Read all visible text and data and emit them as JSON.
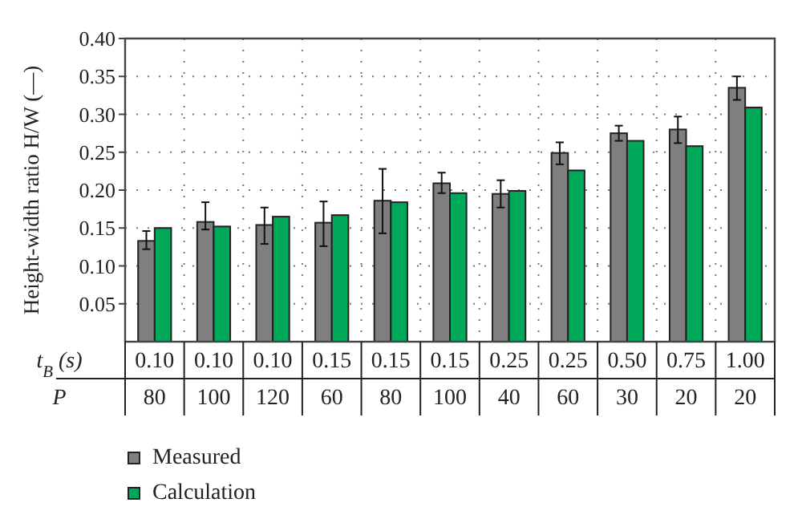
{
  "chart_data": {
    "type": "bar",
    "ylabel": "Height-width ratio H/W (—)",
    "xlabel": "t$_{B}$ (s)\nP",
    "categories": [
      "0.10\n80",
      "0.10\n100",
      "0.10\n120",
      "0.15\n60",
      "0.15\n80",
      "0.15\n100",
      "0.25\n40",
      "0.25\n60",
      "0.50\n30",
      "0.75\n20",
      "1.00\n20"
    ],
    "series": [
      {
        "name": "Measured",
        "color": "#7f7f7f",
        "values": [
          0.133,
          0.158,
          0.154,
          0.157,
          0.186,
          0.209,
          0.195,
          0.249,
          0.275,
          0.28,
          0.335
        ],
        "errors": [
          [
            0.122,
            0.146
          ],
          [
            0.148,
            0.184
          ],
          [
            0.129,
            0.177
          ],
          [
            0.126,
            0.185
          ],
          [
            0.143,
            0.228
          ],
          [
            0.196,
            0.223
          ],
          [
            0.177,
            0.213
          ],
          [
            0.234,
            0.263
          ],
          [
            0.265,
            0.285
          ],
          [
            0.262,
            0.297
          ],
          [
            0.319,
            0.35
          ]
        ]
      },
      {
        "name": "Calculation",
        "color": "#00a859",
        "values": [
          0.15,
          0.152,
          0.165,
          0.167,
          0.184,
          0.196,
          0.199,
          0.226,
          0.265,
          0.258,
          0.309
        ]
      }
    ],
    "ylim": [
      0,
      0.4
    ],
    "yticks": [
      {
        "value": 0.05,
        "label": "0.05"
      },
      {
        "value": 0.1,
        "label": "0.10"
      },
      {
        "value": 0.15,
        "label": "0.15"
      },
      {
        "value": 0.2,
        "label": "0.20"
      },
      {
        "value": 0.25,
        "label": "0.25"
      },
      {
        "value": 0.3,
        "label": "0.30"
      },
      {
        "value": 0.35,
        "label": "0.35"
      },
      {
        "value": 0.4,
        "label": "0.40"
      }
    ],
    "grid": true,
    "legend": "bottom left"
  }
}
